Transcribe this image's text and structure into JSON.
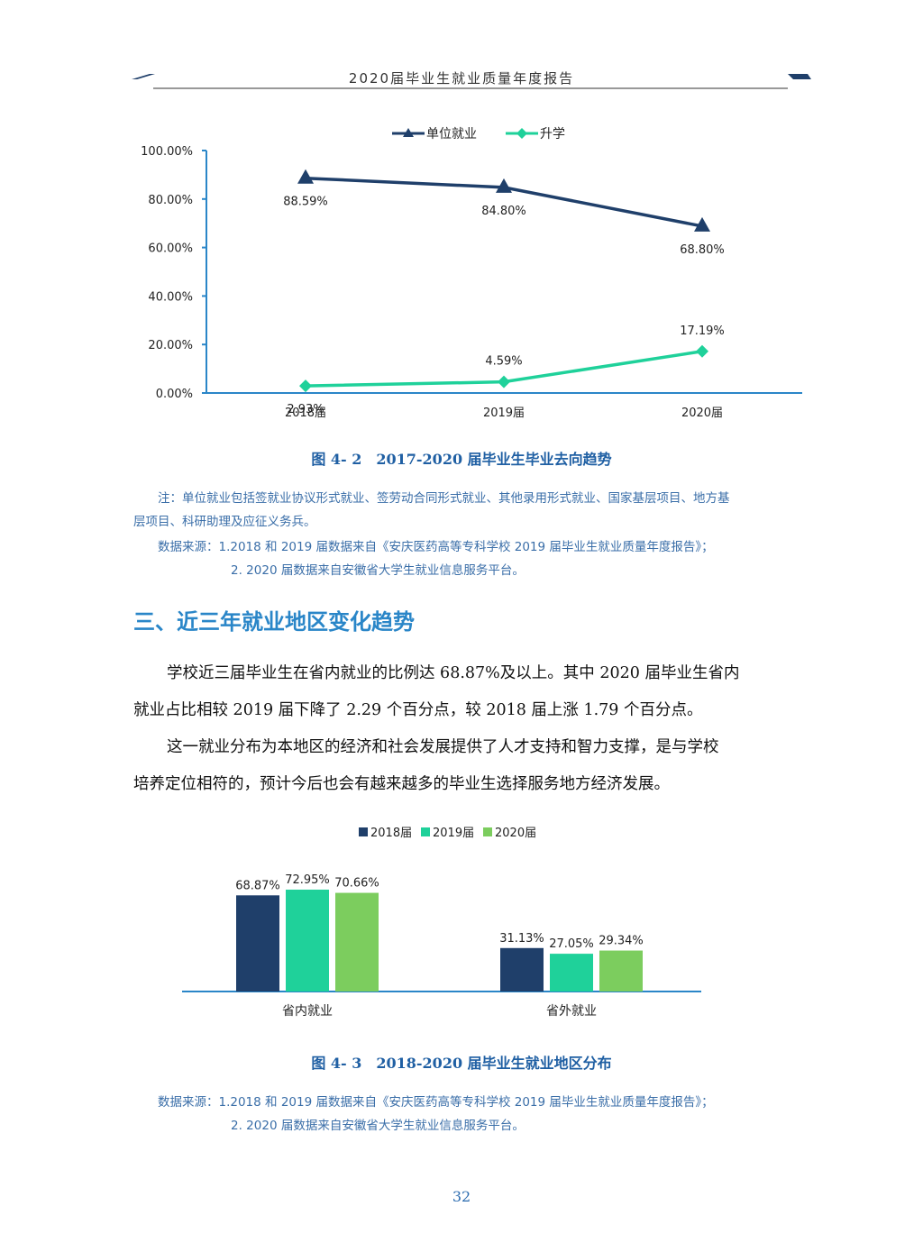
{
  "header": {
    "title": "2020届毕业生就业质量年度报告"
  },
  "colors": {
    "navy": "#1f3f6a",
    "teal": "#1fd19a",
    "green": "#7ccd5e",
    "accent": "#2a86c8"
  },
  "chart1": {
    "caption": "图 4- 2　2017-2020 届毕业生毕业去向趋势",
    "note_line1": "注：单位就业包括签就业协议形式就业、签劳动合同形式就业、其他录用形式就业、国家基层项目、地方基",
    "note_line2": "层项目、科研助理及应征义务兵。",
    "source_line1": "数据来源：1.2018 和 2019 届数据来自《安庆医药高等专科学校 2019 届毕业生就业质量年度报告》；",
    "source_line2": "2. 2020 届数据来自安徽省大学生就业信息服务平台。"
  },
  "section": {
    "heading": "三、近三年就业地区变化趋势"
  },
  "paragraphs": {
    "p1_line1": "学校近三届毕业生在省内就业的比例达 68.87%及以上。其中 2020 届毕业生省内",
    "p1_line2": "就业占比相较 2019 届下降了 2.29 个百分点，较 2018 届上涨 1.79 个百分点。",
    "p2_line1": "这一就业分布为本地区的经济和社会发展提供了人才支持和智力支撑，是与学校",
    "p2_line2": "培养定位相符的，预计今后也会有越来越多的毕业生选择服务地方经济发展。"
  },
  "chart2": {
    "caption": "图 4- 3　2018-2020 届毕业生就业地区分布",
    "source_line1": "数据来源：1.2018 和 2019 届数据来自《安庆医药高等专科学校 2019 届毕业生就业质量年度报告》；",
    "source_line2": "2. 2020 届数据来自安徽省大学生就业信息服务平台。"
  },
  "page_number": "32",
  "chart_data": [
    {
      "type": "line",
      "categories": [
        "2018届",
        "2019届",
        "2020届"
      ],
      "series": [
        {
          "name": "单位就业",
          "values": [
            88.59,
            84.8,
            68.8
          ],
          "labels": [
            "88.59%",
            "84.80%",
            "68.80%"
          ],
          "color": "#1f3f6a",
          "marker": "triangle"
        },
        {
          "name": "升学",
          "values": [
            2.93,
            4.59,
            17.19
          ],
          "labels": [
            "2.93%",
            "4.59%",
            "17.19%"
          ],
          "color": "#1fd19a",
          "marker": "diamond"
        }
      ],
      "ylim": [
        0,
        100
      ],
      "yticks": [
        "0.00%",
        "20.00%",
        "40.00%",
        "60.00%",
        "80.00%",
        "100.00%"
      ],
      "legend": "top-center",
      "grid": false
    },
    {
      "type": "bar",
      "categories": [
        "省内就业",
        "省外就业"
      ],
      "series": [
        {
          "name": "2018届",
          "values": [
            68.87,
            31.13
          ],
          "labels": [
            "68.87%",
            "31.13%"
          ],
          "color": "#1f3f6a"
        },
        {
          "name": "2019届",
          "values": [
            72.95,
            27.05
          ],
          "labels": [
            "72.95%",
            "27.05%"
          ],
          "color": "#1fd19a"
        },
        {
          "name": "2020届",
          "values": [
            70.66,
            29.34
          ],
          "labels": [
            "70.66%",
            "29.34%"
          ],
          "color": "#7ccd5e"
        }
      ],
      "legend": "top-center",
      "grid": false
    }
  ]
}
